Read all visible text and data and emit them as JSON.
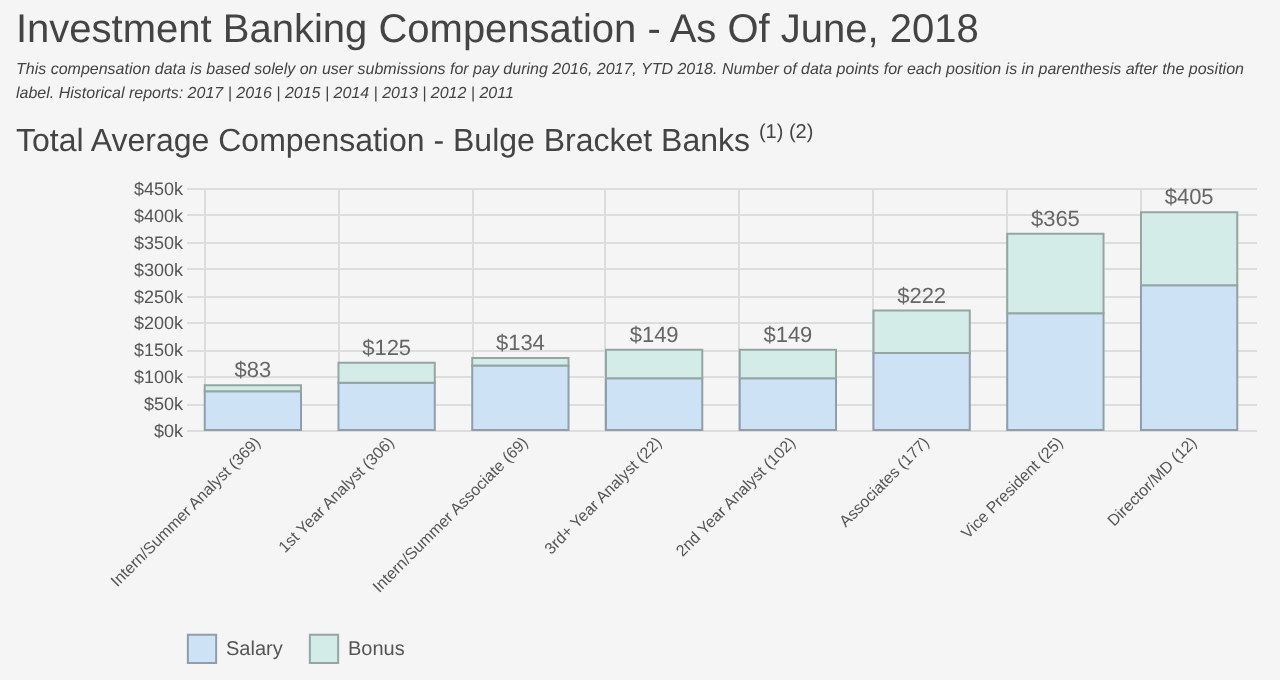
{
  "chart_data": {
    "type": "bar",
    "title": "Investment Banking Compensation - As Of June, 2018",
    "subtitle": "Total Average Compensation - Bulge Bracket Banks $^{(1) (2)}$",
    "annotations": [
      "This compensation data is based solely on user submissions for pay during 2016, 2017, YTD 2018. Number of data points for each position is in parenthesis after the position label. Historical reports: 2017 | 2016 | 2015 | 2014 | 2013 | 2012 | 2011"
    ],
    "categories": [
      "Intern/Summer Analyst (369)",
      "1st Year Analyst (306)",
      "Intern/Summer Associate (69)",
      "3rd+ Year Analyst (22)",
      "2nd Year Analyst (102)",
      "Associates (177)",
      "Vice President (25)",
      "Director/MD (12)"
    ],
    "stacked": true,
    "series": [
      {
        "name": "Salary",
        "color": "#cde2f4",
        "values": [
          72,
          88,
          120,
          96,
          96,
          143,
          217,
          269
        ]
      },
      {
        "name": "Bonus",
        "color": "#d4ece8",
        "values": [
          11,
          37,
          14,
          53,
          53,
          79,
          148,
          136
        ]
      }
    ],
    "totals": [
      "$83",
      "$125",
      "$134",
      "$149",
      "$149",
      "$222",
      "$365",
      "$405"
    ],
    "ylim": [
      0,
      450
    ],
    "yticks": [
      {
        "value": 0,
        "label": "$0k"
      },
      {
        "value": 50,
        "label": "$50k"
      },
      {
        "value": 100,
        "label": "$100k"
      },
      {
        "value": 150,
        "label": "$150k"
      },
      {
        "value": 200,
        "label": "$200k"
      },
      {
        "value": 250,
        "label": "$250k"
      },
      {
        "value": 300,
        "label": "$300k"
      },
      {
        "value": 350,
        "label": "$350k"
      },
      {
        "value": 400,
        "label": "$400k"
      },
      {
        "value": 450,
        "label": "$450k"
      }
    ],
    "grid": true,
    "legend": "bottom"
  }
}
